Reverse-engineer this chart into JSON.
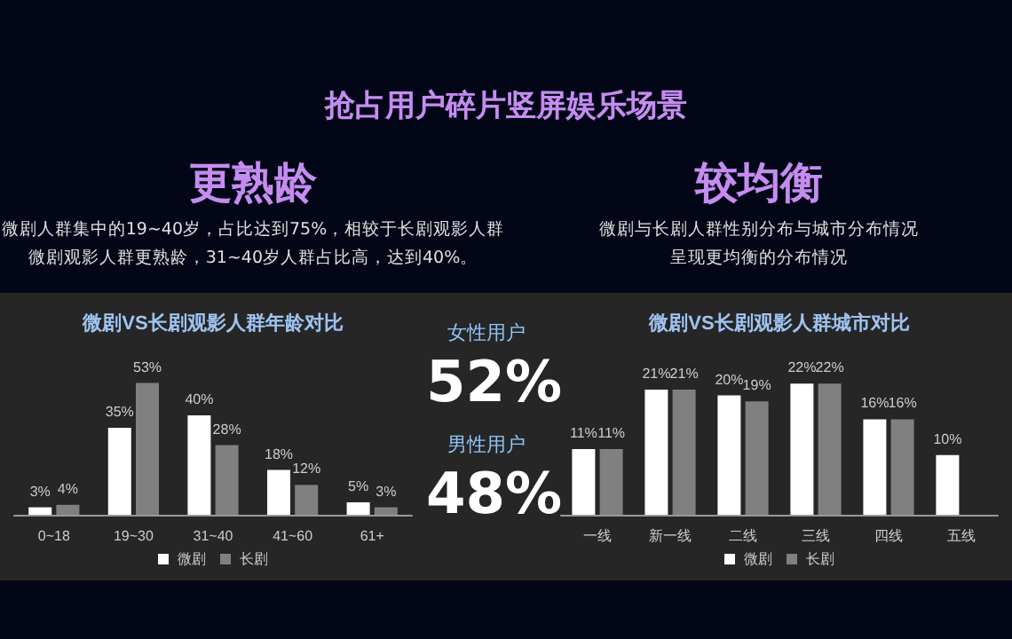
{
  "chart_data": [
    {
      "type": "other",
      "title": "抢占用户碎片竖屏娱乐场景",
      "annotations": [
        "更熟龄",
        "微剧人群集中的19~40岁，占比达到75%，相较于长剧观影人群",
        "微剧观影人群更熟龄，31~40岁人群占比高，达到40%。",
        "较均衡",
        "微剧与长剧人群性别分布与城市分布情况",
        "呈现更均衡的分布情况"
      ]
    },
    {
      "type": "bar",
      "title": "微剧VS长剧观影人群年龄对比",
      "categories": [
        "0~18",
        "19~30",
        "31~40",
        "41~60",
        "61+"
      ],
      "legend": "bottom",
      "series": [
        {
          "name": "微剧",
          "color": "#ffffff",
          "values": [
            3,
            35,
            40,
            18,
            5
          ],
          "value_labels": [
            "3%",
            "35%",
            "40%",
            "18%",
            "5%"
          ]
        },
        {
          "name": "长剧",
          "color": "#808080",
          "values": [
            4,
            53,
            28,
            12,
            3
          ],
          "value_labels": [
            "4%",
            "53%",
            "28%",
            "12%",
            "3%"
          ]
        }
      ]
    },
    {
      "type": "other",
      "categories": [
        "女性用户",
        "男性用户"
      ],
      "value_labels": [
        "52%",
        "48%"
      ]
    },
    {
      "type": "bar",
      "title": "微剧VS长剧观影人群城市对比",
      "categories": [
        "一线",
        "新一线",
        "二线",
        "三线",
        "四线",
        "五线"
      ],
      "legend": "bottom",
      "series": [
        {
          "name": "微剧",
          "color": "#ffffff",
          "values": [
            11,
            21,
            20,
            22,
            16,
            10
          ],
          "value_labels": [
            "11%",
            "21%",
            "20%",
            "22%",
            "16%",
            "10%"
          ]
        },
        {
          "name": "长剧",
          "color": "#808080",
          "values": [
            11,
            21,
            19,
            22,
            16,
            null
          ],
          "value_labels": [
            "11%",
            "21%",
            "19%",
            "22%",
            "16%",
            null
          ]
        }
      ]
    }
  ]
}
